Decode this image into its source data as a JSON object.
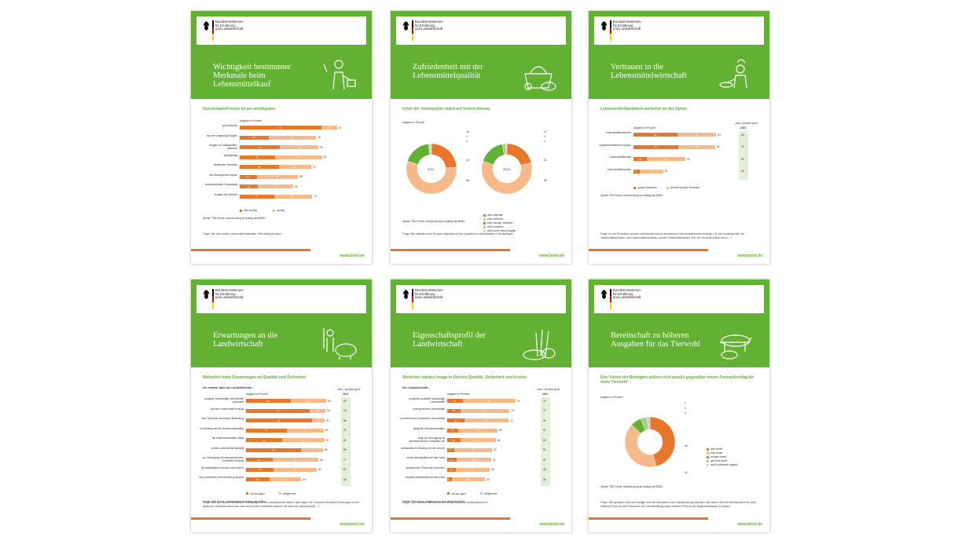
{
  "common": {
    "ministry": "Bundesministerium\nfür Ernährung\nund Landwirtschaft",
    "url": "www.bmel.de",
    "source_1": "Quelle: TNS Emnid, Untersuchung im Auftrag des BMEL",
    "percent_label": "Angaben in Prozent",
    "year_label": "2013",
    "prev_label": "„sehr / ziemlich groß“"
  },
  "colors": {
    "green": "#62b133",
    "orange": "#e8772c",
    "light_orange": "#f5b98a",
    "light_green": "#e3f0d8"
  },
  "cards": [
    {
      "title": "Wichtigkeit bestimmter Merkmale beim Lebensmittelkauf",
      "subtitle": "Geschmack/Frische ist am wichtigsten",
      "icon": "shopper-icon",
      "question": "Frage: Wie sehr achtet Lebensmittel einkaufen: Wie wichtig ist Ihnen ...",
      "legend": [
        "sehr wichtig",
        "wichtig"
      ],
      "rows": [
        {
          "label": "gut schmeckt",
          "a": 81,
          "b": 16,
          "t": 97
        },
        {
          "label": "aus der Umgebung/ Region",
          "a": 29,
          "b": 47,
          "t": 76
        },
        {
          "label": "Angabe zu Inhaltsstoffen/ Nährwert",
          "a": 40,
          "b": 38,
          "t": 78
        },
        {
          "label": "preisgünstig",
          "a": 35,
          "b": 47,
          "t": 82
        },
        {
          "label": "bestimmter Hersteller",
          "a": 39,
          "b": 32,
          "t": 71
        },
        {
          "label": "aus ökologischem Anbau",
          "a": 17,
          "b": 41,
          "t": 58
        },
        {
          "label": "umweltbewusste Verpackung",
          "a": 18,
          "b": 35,
          "t": 53
        },
        {
          "label": "Angabe der Kalorien",
          "a": 34,
          "b": 38,
          "t": 72
        }
      ]
    },
    {
      "title": "Zufriedenheit mit der Lebensmittelqualität",
      "subtitle": "Urteil der Verbraucher stabil auf hohem Niveau",
      "icon": "basket-icon",
      "question": "Frage: Wie zufrieden sind Sie ganz allgemein mit der Qualität von Lebensmitteln in Deutschland?",
      "years": [
        "2011",
        "2013"
      ],
      "legend": [
        "sehr zufrieden",
        "eher zufrieden",
        "eher weniger zufrieden",
        "nicht zufrieden",
        "weiß nicht / keine Angabe"
      ],
      "donuts": [
        [
          24,
          56,
          18,
          1,
          1
        ],
        [
          21,
          59,
          17,
          2,
          1
        ]
      ],
      "labels_2011": [
        "18",
        "1",
        "1",
        "24",
        "56"
      ],
      "labels_2013": [
        "17",
        "2",
        "1",
        "21",
        "59"
      ]
    },
    {
      "title": "Vertrauen in die Lebensmittelwirtschaft",
      "subtitle": "Lebensmittelhandwerk weiterhin an der Spitze",
      "icon": "chef-icon",
      "question": "Frage: An der Produktion unserer Lebensmittel sind ja verschiedene Wirtschaftsbereiche beteiligt, z.B. die Landwirtschaft, die Lebensmittelindustrie, das Lebensmittelhandwerk und der Lebensmittelhandel. Wie viel Vertrauen haben Sie in ...?",
      "legend": [
        "großes Vertrauen",
        "ziemlich großes Vertrauen"
      ],
      "rows": [
        {
          "label": "Lebensmittelhandwerk",
          "a": 43,
          "b": 38,
          "t": 81,
          "p": 83
        },
        {
          "label": "Landwirtschaftliche Erzeuger",
          "a": 44,
          "b": 36,
          "t": 80,
          "p": 76
        },
        {
          "label": "Lebensmittelhandel",
          "a": 13,
          "b": 38,
          "t": 51,
          "p": 53
        },
        {
          "label": "Lebensmittelindustrie",
          "a": 6,
          "b": 23,
          "t": 29,
          "p": 26
        }
      ]
    },
    {
      "title": "Erwartungen an die Landwirtschaft",
      "subtitle": "Weiterhin hohe Erwartungen an Qualität und Sicherheit",
      "heading": "Ich erwarte, dass die Landwirtschaft ...",
      "icon": "farmer-pig-icon",
      "question": "Frage: Man kann ja unterschiedliche Erwartungen an die Landwirtschaft richten. Bitte sagen Sie, inwieweit Sie diese Erwartungen an die deutsche Landwirtschaft richten oder nicht richten. Inwieweit erwarten Sie dass die Landwirtschaft ...?",
      "legend": [
        "voll und ganz",
        "weitgehend"
      ],
      "rows": [
        {
          "label": "qualitativ hochwertige Lebensmittel produziert",
          "a": 52,
          "b": 41,
          "t": 93,
          "p": 94
        },
        {
          "label": "auf faire Lebensmittel erzeugt",
          "a": 74,
          "b": 18,
          "t": 92,
          "p": 93
        },
        {
          "label": "dem Tierschutz besondere Beachtung",
          "a": 76,
          "b": 15,
          "t": 91,
          "p": 88
        },
        {
          "label": "im Einklang mit der Umwelt wirtschaftet",
          "a": 47,
          "b": 43,
          "t": 90,
          "p": 91
        },
        {
          "label": "die Kulturlandschaften pflegt",
          "a": 42,
          "b": 49,
          "t": 91,
          "p": 84
        },
        {
          "label": "sichere Lebensmittel herstellt",
          "a": 64,
          "b": 25,
          "t": 89,
          "p": 85
        },
        {
          "label": "zur Versorgung mit nachwachsenden Rohstoffen beiträgt",
          "a": 31,
          "b": 53,
          "t": 84,
          "p": 77
        },
        {
          "label": "die Arbeitsplätze auf dem Land sichert",
          "a": 32,
          "b": 50,
          "t": 82,
          "p": 87
        },
        {
          "label": "auch preiswerte Lebensmittel produziert",
          "a": 27,
          "b": 37,
          "t": 64,
          "p": 66
        }
      ]
    },
    {
      "title": "Eigenschaftsprofil der Landwirtschaft",
      "subtitle": "Weiterhin starkes Image in Sachen Qualität, Sicherheit und Kosten",
      "heading": "Die Landwirtschaft ...",
      "icon": "wheat-bread-icon",
      "question": "Frage: Und inwieweit trifft das zur Zeit auf die deutsche Landwirtschaft zu?",
      "legend": [
        "voll und ganz",
        "weitgehend"
      ],
      "rows": [
        {
          "label": "produziert qualitativ hochwertige Lebensmittel",
          "a": 18,
          "b": 61,
          "t": 79,
          "p": 74
        },
        {
          "label": "erzeugt sichere Lebensmittel",
          "a": 15,
          "b": 57,
          "t": 72,
          "p": 73
        },
        {
          "label": "produziert auch preiswerte Lebensmittel",
          "a": 20,
          "b": 51,
          "t": 71,
          "p": 64
        },
        {
          "label": "pflegt die Kulturlandschaften",
          "a": 13,
          "b": 45,
          "t": 58,
          "p": 57
        },
        {
          "label": "trägt zur Versorgung mit nachwachsenden Rohstoffen bei",
          "a": 15,
          "b": 41,
          "t": 56,
          "p": 53
        },
        {
          "label": "wirtschaftet im Einklang mit der Umwelt",
          "a": 8,
          "b": 44,
          "t": 52,
          "p": 52
        },
        {
          "label": "sichert Arbeitsplätze auf dem Land",
          "a": 11,
          "b": 40,
          "t": 51,
          "p": 47
        },
        {
          "label": "beachtet den Tierschutz besonders",
          "a": 10,
          "b": 39,
          "t": 49,
          "p": 48
        },
        {
          "label": "vergütet Arbeitskräfte auf dem Land",
          "a": 5,
          "b": 39,
          "t": 44,
          "p": 48
        }
      ]
    },
    {
      "title": "Bereitschaft zu höheren Ausgaben für das Tierwohl",
      "subtitle": "Drei Viertel der Befragten äußern sich positiv gegenüber einem Preisaufschlag für mehr Tierwohl",
      "icon": "cow-pig-icon",
      "question": "Frage: Seit geraumer Zeit wird häufiger über die Standards in der Nutztierhaltung diskutiert. Wie stehen Sie Ihre Bereitschaft einen (hier: höheren) Preis für mehr Tierwohl in der Nutztierhaltung einem höheren Preis an der Supermarktkasse zu zahlen?",
      "legend": [
        "sehr bereit",
        "eher bereit",
        "weniger bereit",
        "gar nicht bereit",
        "weiß nicht/keine Angabe"
      ],
      "donut": [
        46,
        41,
        7,
        4,
        2
      ],
      "labels": [
        "7",
        "2",
        "4",
        "46",
        "41"
      ]
    }
  ]
}
